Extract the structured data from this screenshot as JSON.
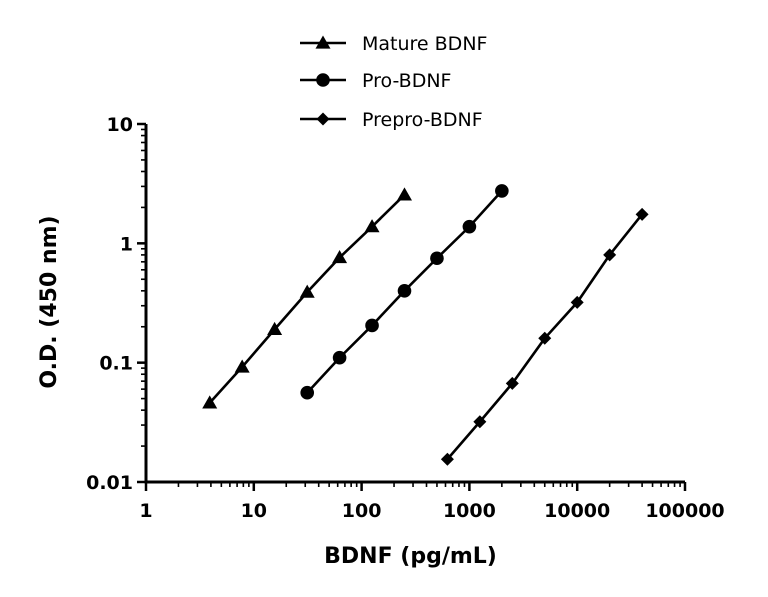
{
  "chart_data": {
    "type": "scatter",
    "xscale": "log",
    "yscale": "log",
    "xlabel": "BDNF (pg/mL)",
    "ylabel": "O.D. (450 nm)",
    "xlim": [
      1,
      100000
    ],
    "ylim": [
      0.01,
      10
    ],
    "x_tick_labels": [
      "1",
      "10",
      "100",
      "1000",
      "10000",
      "100000"
    ],
    "y_tick_labels": [
      "0.01",
      "0.1",
      "1",
      "10"
    ],
    "grid": false,
    "legend_position": "top-center",
    "series": [
      {
        "name": "Mature BDNF",
        "marker": "triangle",
        "color": "#000000",
        "x": [
          3.9,
          7.8,
          15.6,
          31.3,
          62.5,
          125,
          250
        ],
        "y": [
          0.046,
          0.092,
          0.19,
          0.39,
          0.76,
          1.38,
          2.55
        ]
      },
      {
        "name": "Pro-BDNF",
        "marker": "circle",
        "color": "#000000",
        "x": [
          31.3,
          62.5,
          125,
          250,
          500,
          1000,
          2000
        ],
        "y": [
          0.056,
          0.11,
          0.205,
          0.4,
          0.75,
          1.38,
          2.75
        ]
      },
      {
        "name": "Prepro-BDNF",
        "marker": "diamond",
        "color": "#000000",
        "x": [
          625,
          1250,
          2500,
          5000,
          10000,
          20000,
          40000
        ],
        "y": [
          0.0155,
          0.032,
          0.067,
          0.16,
          0.32,
          0.8,
          1.75
        ]
      }
    ]
  }
}
